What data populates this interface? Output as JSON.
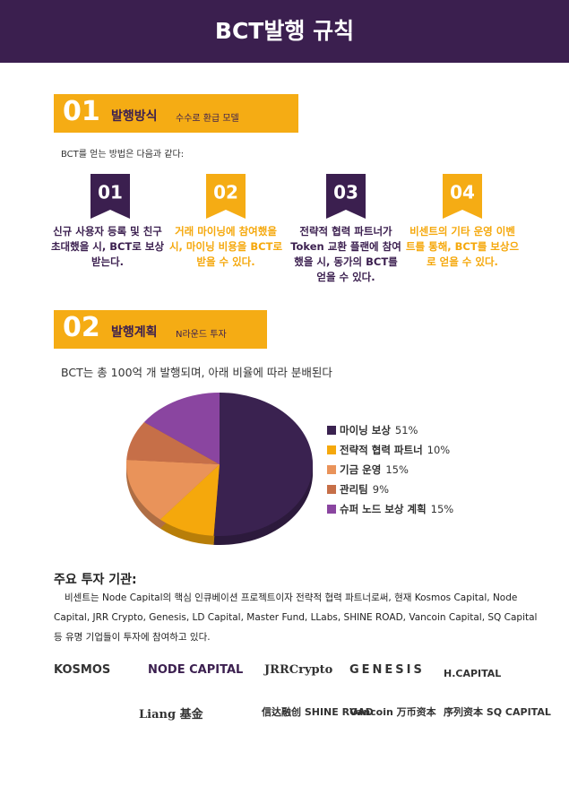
{
  "header": {
    "title": "BCT발행 규칙"
  },
  "section1": {
    "number": "01",
    "title": "발행방식",
    "subtitle": "수수로 환급 모델",
    "intro": "BCT를 얻는 방법은 다음과 같다:",
    "methods": [
      {
        "number": "01",
        "text": "신규 사용자 등록 및 친구 초대했을 시, BCT로 보상 받는다."
      },
      {
        "number": "02",
        "text": "거래 마이닝에 참여했을 시, 마이닝 비용을 BCT로 받을 수 있다."
      },
      {
        "number": "03",
        "text": "전략적 협력 파트너가 Token 교환 플랜에 참여했을 시, 동가의 BCT를 얻을 수 있다."
      },
      {
        "number": "04",
        "text": "비센트의 기타 운영 이벤트를 통해, BCT를 보상으로 얻을 수 있다."
      }
    ]
  },
  "section2": {
    "number": "02",
    "title": "발행계획",
    "subtitle": "N라운드 투자",
    "intro": "BCT는 총 100억 개 발행되며, 아래 비율에 따라 분배된다"
  },
  "chart_data": {
    "type": "pie",
    "categories": [
      "마이닝 보상",
      "전략적 협력 파트너",
      "기금 운영",
      "관리팀",
      "슈퍼 노드 보상 계획"
    ],
    "values": [
      51,
      10,
      15,
      9,
      15
    ],
    "value_labels": [
      "51%",
      "10%",
      "15%",
      "9%",
      "15%"
    ],
    "colors": [
      "#3a2250",
      "#f5a80c",
      "#e9935a",
      "#c66f48",
      "#8a45a0"
    ],
    "legend": "right"
  },
  "investors": {
    "title": "주요 투자 기관:",
    "text": "비센트는 Node Capital의 핵심 인큐베이션 프로젝트이자 전략적 협력 파트너로써, 현재 Kosmos Capital, Node Capital, JRR Crypto, Genesis, LD Capital, Master Fund, LLabs, SHINE ROAD, Vancoin Capital, SQ Capital 등 유명 기업들이 투자에 참여하고 있다.",
    "logos": [
      "KOSMOS",
      "NODE CAPITAL",
      "JRRCrypto",
      "GENESIS",
      "H.CAPITAL",
      "Liang 基金",
      "信达融创 SHINE ROAD",
      "Vancoin 万币资本",
      "序列资本 SQ CAPITAL"
    ]
  }
}
